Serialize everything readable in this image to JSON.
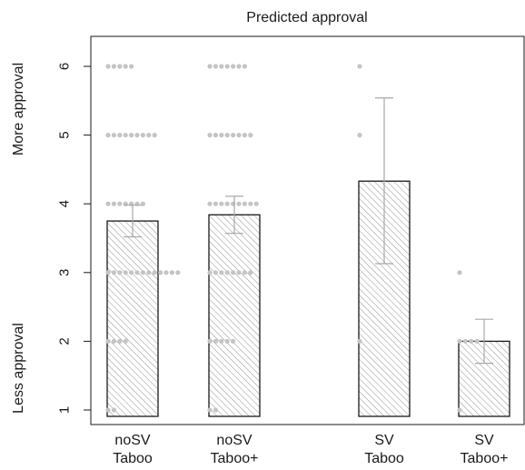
{
  "chart_data": {
    "type": "bar",
    "title": "Predicted approval",
    "y_axis_annotations": {
      "top": "More approval",
      "bottom": "Less approval"
    },
    "ylim": [
      0.8,
      6.3
    ],
    "y_ticks": [
      1,
      2,
      3,
      4,
      5,
      6
    ],
    "grid": false,
    "bar_fill": "hatched",
    "colors": {
      "bar_stroke": "#1a1a1a",
      "hatch": "#9a9a9a",
      "dots": "#c4c4c4",
      "error_bars": "#a8a8a8",
      "axis": "#1a1a1a"
    },
    "categories": [
      {
        "line1": "noSV",
        "line2": "Taboo",
        "group": "noSV"
      },
      {
        "line1": "noSV",
        "line2": "Taboo+",
        "group": "noSV"
      },
      {
        "line1": "SV",
        "line2": "Taboo",
        "group": "SV"
      },
      {
        "line1": "SV",
        "line2": "Taboo+",
        "group": "SV"
      }
    ],
    "values": [
      3.75,
      3.84,
      4.33,
      2.0
    ],
    "error_low": [
      3.52,
      3.57,
      3.13,
      1.68
    ],
    "error_high": [
      3.98,
      4.11,
      5.54,
      2.32
    ],
    "response_dots": [
      {
        "6": 5,
        "5": 9,
        "4": 7,
        "3": 13,
        "2": 4,
        "1": 2
      },
      {
        "6": 7,
        "5": 8,
        "4": 9,
        "3": 8,
        "2": 5,
        "1": 2
      },
      {
        "6": 1,
        "5": 1,
        "2": 1
      },
      {
        "3": 1,
        "2": 4,
        "1": 1
      }
    ]
  }
}
